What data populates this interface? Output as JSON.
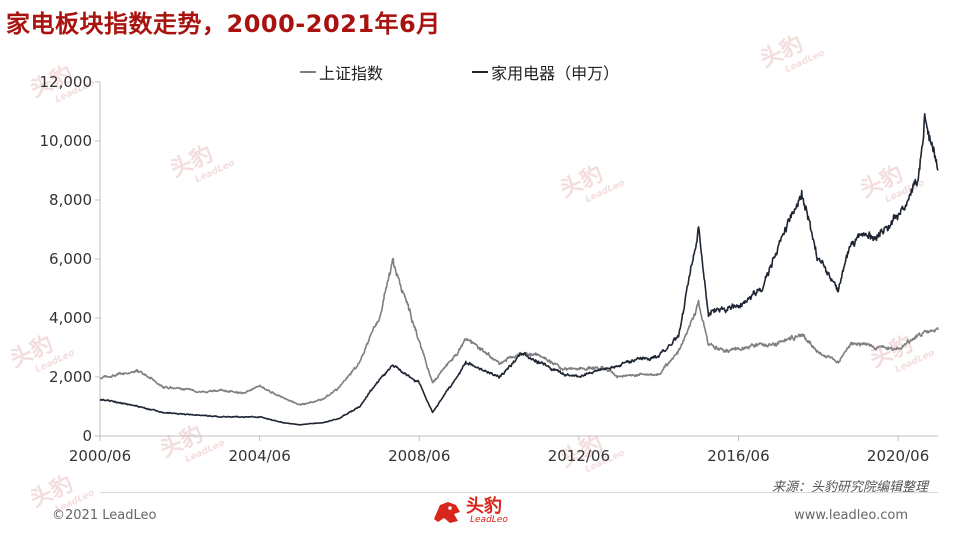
{
  "title": "家电板块指数走势，2000-2021年6月",
  "legend": {
    "items": [
      {
        "label": "上证指数",
        "color": "#7f7f7f"
      },
      {
        "label": "家用电器（申万）",
        "color": "#1f2633"
      }
    ]
  },
  "source": "来源：头豹研究院编辑整理",
  "footer": {
    "copyright": "©2021 LeadLeo",
    "website": "www.leadleo.com",
    "logo_cn": "头豹",
    "logo_en": "LeadLeo"
  },
  "watermark": {
    "cn": "头豹",
    "en": "LeadLeo"
  },
  "chart_data": {
    "type": "line",
    "title": "家电板块指数走势，2000-2021年6月",
    "xlabel": "",
    "ylabel": "",
    "x_ticks": [
      "2000/06",
      "2004/06",
      "2008/06",
      "2012/06",
      "2016/06",
      "2020/06"
    ],
    "y_ticks": [
      "0",
      "2,000",
      "4,000",
      "6,000",
      "8,000",
      "10,000",
      "12,000"
    ],
    "ylim": [
      0,
      12000
    ],
    "xlim": [
      "2000/06",
      "2021/06"
    ],
    "grid": false,
    "legend_position": "top",
    "series": [
      {
        "name": "上证指数",
        "color": "#7f7f7f",
        "x": [
          "2000/06",
          "2001/01",
          "2001/06",
          "2002/01",
          "2002/06",
          "2003/01",
          "2003/06",
          "2004/01",
          "2004/06",
          "2005/01",
          "2005/06",
          "2006/01",
          "2006/06",
          "2006/12",
          "2007/06",
          "2007/10",
          "2008/06",
          "2008/10",
          "2009/06",
          "2009/08",
          "2010/06",
          "2011/01",
          "2011/06",
          "2012/01",
          "2012/06",
          "2013/01",
          "2013/06",
          "2014/01",
          "2014/06",
          "2014/12",
          "2015/06",
          "2015/09",
          "2016/01",
          "2016/06",
          "2017/01",
          "2017/06",
          "2018/01",
          "2018/06",
          "2018/12",
          "2019/04",
          "2019/12",
          "2020/06",
          "2020/12",
          "2021/06"
        ],
        "values": [
          1950,
          2100,
          2200,
          1650,
          1600,
          1500,
          1550,
          1450,
          1700,
          1300,
          1050,
          1250,
          1650,
          2500,
          4000,
          5950,
          3200,
          1800,
          2900,
          3300,
          2500,
          2800,
          2750,
          2300,
          2300,
          2300,
          2000,
          2100,
          2050,
          2900,
          4500,
          3100,
          2900,
          2950,
          3100,
          3150,
          3450,
          2850,
          2500,
          3200,
          3000,
          2950,
          3400,
          3600
        ]
      },
      {
        "name": "家用电器（申万）",
        "color": "#1f2633",
        "x": [
          "2000/06",
          "2001/01",
          "2001/06",
          "2002/01",
          "2002/06",
          "2003/01",
          "2003/06",
          "2004/01",
          "2004/06",
          "2005/01",
          "2005/06",
          "2006/01",
          "2006/06",
          "2006/12",
          "2007/06",
          "2007/10",
          "2008/06",
          "2008/10",
          "2009/06",
          "2009/08",
          "2010/06",
          "2011/01",
          "2011/06",
          "2012/01",
          "2012/06",
          "2013/01",
          "2013/06",
          "2014/01",
          "2014/06",
          "2014/12",
          "2015/06",
          "2015/09",
          "2016/01",
          "2016/06",
          "2017/01",
          "2017/06",
          "2018/01",
          "2018/06",
          "2018/12",
          "2019/04",
          "2019/12",
          "2020/06",
          "2020/12",
          "2021/02",
          "2021/06"
        ],
        "values": [
          1250,
          1100,
          1000,
          800,
          750,
          700,
          650,
          650,
          650,
          450,
          380,
          450,
          600,
          1000,
          1900,
          2400,
          1800,
          800,
          2100,
          2500,
          2000,
          2800,
          2500,
          2100,
          2000,
          2250,
          2400,
          2650,
          2700,
          3400,
          7000,
          4200,
          4300,
          4400,
          5000,
          6500,
          8200,
          6000,
          4900,
          6700,
          6800,
          7500,
          8600,
          10700,
          9000
        ]
      }
    ]
  }
}
